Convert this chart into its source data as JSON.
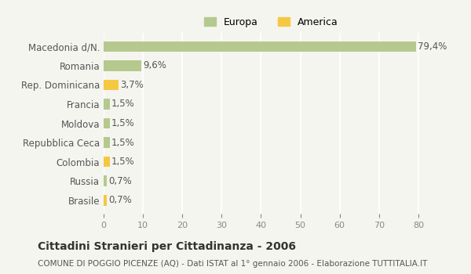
{
  "categories": [
    "Brasile",
    "Russia",
    "Colombia",
    "Repubblica Ceca",
    "Moldova",
    "Francia",
    "Rep. Dominicana",
    "Romania",
    "Macedonia d/N."
  ],
  "values": [
    0.7,
    0.7,
    1.5,
    1.5,
    1.5,
    1.5,
    3.7,
    9.6,
    79.4
  ],
  "labels": [
    "0,7%",
    "0,7%",
    "1,5%",
    "1,5%",
    "1,5%",
    "1,5%",
    "3,7%",
    "9,6%",
    "79,4%"
  ],
  "colors": [
    "#f5c842",
    "#b5c98e",
    "#f5c842",
    "#b5c98e",
    "#b5c98e",
    "#b5c98e",
    "#f5c842",
    "#b5c98e",
    "#b5c98e"
  ],
  "europa_color": "#b5c98e",
  "america_color": "#f5c842",
  "bg_color": "#f5f5f0",
  "title": "Cittadini Stranieri per Cittadinanza - 2006",
  "subtitle": "COMUNE DI POGGIO PICENZE (AQ) - Dati ISTAT al 1° gennaio 2006 - Elaborazione TUTTITALIA.IT",
  "xlim": [
    0,
    85
  ],
  "xticks": [
    0,
    10,
    20,
    30,
    40,
    50,
    60,
    70,
    80
  ]
}
